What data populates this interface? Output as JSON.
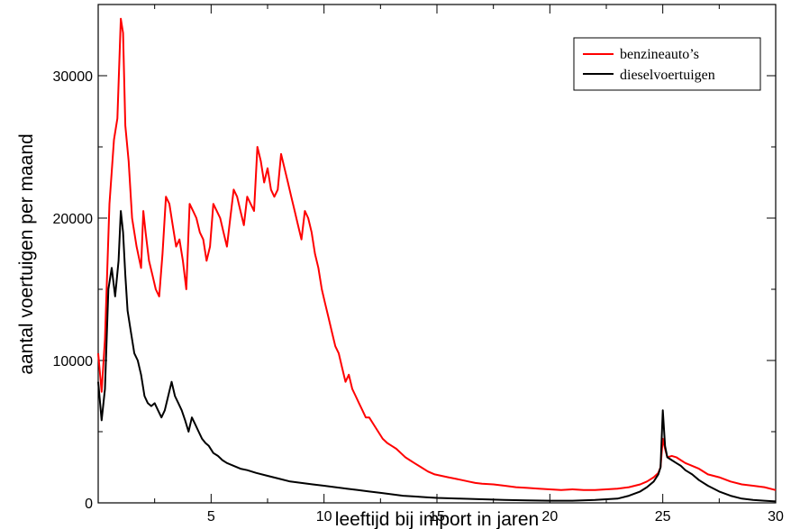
{
  "chart_data": {
    "type": "line",
    "xlabel": "leeftijd bij import in jaren",
    "ylabel": "aantal voertuigen per maand",
    "xlim": [
      0,
      30
    ],
    "ylim": [
      0,
      35000
    ],
    "xticks": [
      5,
      10,
      15,
      20,
      25,
      30
    ],
    "yticks": [
      0,
      10000,
      20000,
      30000
    ],
    "grid": false,
    "legend_position": "top-right",
    "series": [
      {
        "name": "benzineauto’s",
        "color": "#ff0000",
        "x": [
          0.0,
          0.15,
          0.3,
          0.5,
          0.7,
          0.85,
          1.0,
          1.1,
          1.2,
          1.35,
          1.5,
          1.7,
          1.9,
          2.0,
          2.1,
          2.25,
          2.4,
          2.55,
          2.7,
          2.85,
          3.0,
          3.15,
          3.3,
          3.45,
          3.6,
          3.75,
          3.9,
          4.05,
          4.2,
          4.35,
          4.5,
          4.65,
          4.8,
          4.95,
          5.1,
          5.25,
          5.4,
          5.55,
          5.7,
          5.85,
          6.0,
          6.15,
          6.3,
          6.45,
          6.6,
          6.75,
          6.9,
          7.05,
          7.2,
          7.35,
          7.5,
          7.65,
          7.8,
          7.95,
          8.1,
          8.25,
          8.4,
          8.55,
          8.7,
          8.85,
          9.0,
          9.15,
          9.3,
          9.45,
          9.6,
          9.75,
          9.9,
          10.05,
          10.2,
          10.35,
          10.5,
          10.65,
          10.8,
          10.95,
          11.1,
          11.25,
          11.4,
          11.55,
          11.7,
          11.85,
          12.0,
          12.2,
          12.4,
          12.6,
          12.8,
          13.0,
          13.2,
          13.4,
          13.6,
          13.8,
          14.0,
          14.3,
          14.6,
          14.9,
          15.2,
          15.5,
          15.8,
          16.1,
          16.4,
          16.7,
          17.0,
          17.5,
          18.0,
          18.5,
          19.0,
          19.5,
          20.0,
          20.5,
          21.0,
          21.5,
          22.0,
          22.5,
          23.0,
          23.5,
          24.0,
          24.3,
          24.6,
          24.8,
          24.9,
          25.0,
          25.1,
          25.2,
          25.4,
          25.6,
          25.8,
          26.0,
          26.3,
          26.6,
          27.0,
          27.5,
          28.0,
          28.5,
          29.0,
          29.5,
          30.0
        ],
        "values": [
          10500,
          7800,
          11500,
          21000,
          25500,
          27000,
          34000,
          33000,
          26500,
          24000,
          20000,
          18000,
          16500,
          20500,
          19000,
          17000,
          16000,
          15000,
          14500,
          17500,
          21500,
          21000,
          19500,
          18000,
          18500,
          17000,
          15000,
          21000,
          20500,
          20000,
          19000,
          18500,
          17000,
          18000,
          21000,
          20500,
          20000,
          19000,
          18000,
          20000,
          22000,
          21500,
          20500,
          19500,
          21500,
          21000,
          20500,
          25000,
          24000,
          22500,
          23500,
          22000,
          21500,
          22000,
          24500,
          23500,
          22500,
          21500,
          20500,
          19500,
          18500,
          20500,
          20000,
          19000,
          17500,
          16500,
          15000,
          14000,
          13000,
          12000,
          11000,
          10500,
          9500,
          8500,
          9000,
          8000,
          7500,
          7000,
          6500,
          6000,
          6000,
          5500,
          5000,
          4500,
          4200,
          4000,
          3800,
          3500,
          3200,
          3000,
          2800,
          2500,
          2200,
          2000,
          1900,
          1800,
          1700,
          1600,
          1500,
          1400,
          1350,
          1300,
          1200,
          1100,
          1050,
          1000,
          950,
          900,
          950,
          900,
          900,
          950,
          1000,
          1100,
          1300,
          1500,
          1800,
          2100,
          2500,
          4500,
          3800,
          3200,
          3300,
          3200,
          3000,
          2800,
          2600,
          2400,
          2000,
          1800,
          1500,
          1300,
          1200,
          1100,
          900
        ]
      },
      {
        "name": "dieselvoertuigen",
        "color": "#000000",
        "x": [
          0.0,
          0.15,
          0.3,
          0.45,
          0.6,
          0.75,
          0.9,
          1.0,
          1.1,
          1.2,
          1.3,
          1.45,
          1.6,
          1.75,
          1.9,
          2.05,
          2.2,
          2.35,
          2.5,
          2.65,
          2.8,
          2.95,
          3.1,
          3.25,
          3.4,
          3.55,
          3.7,
          3.85,
          4.0,
          4.15,
          4.3,
          4.45,
          4.6,
          4.75,
          4.9,
          5.1,
          5.3,
          5.5,
          5.7,
          6.0,
          6.3,
          6.6,
          7.0,
          7.5,
          8.0,
          8.5,
          9.0,
          9.5,
          10.0,
          10.5,
          11.0,
          11.5,
          12.0,
          12.5,
          13.0,
          13.5,
          14.0,
          14.5,
          15.0,
          16.0,
          17.0,
          18.0,
          19.0,
          20.0,
          21.0,
          22.0,
          23.0,
          23.5,
          24.0,
          24.3,
          24.6,
          24.8,
          24.9,
          25.0,
          25.1,
          25.2,
          25.4,
          25.6,
          25.8,
          26.0,
          26.3,
          26.6,
          27.0,
          27.5,
          28.0,
          28.5,
          29.0,
          29.5,
          30.0
        ],
        "values": [
          8500,
          5800,
          8000,
          15000,
          16500,
          14500,
          17000,
          20500,
          19000,
          16000,
          13500,
          12000,
          10500,
          10000,
          9000,
          7500,
          7000,
          6800,
          7000,
          6500,
          6000,
          6500,
          7500,
          8500,
          7500,
          7000,
          6500,
          5800,
          5000,
          6000,
          5500,
          5000,
          4500,
          4200,
          4000,
          3500,
          3300,
          3000,
          2800,
          2600,
          2400,
          2300,
          2100,
          1900,
          1700,
          1500,
          1400,
          1300,
          1200,
          1100,
          1000,
          900,
          800,
          700,
          600,
          500,
          450,
          400,
          350,
          300,
          250,
          200,
          180,
          150,
          150,
          200,
          300,
          500,
          800,
          1100,
          1500,
          2000,
          2500,
          6500,
          4000,
          3200,
          3000,
          2800,
          2600,
          2300,
          2000,
          1600,
          1200,
          800,
          500,
          300,
          200,
          150,
          100
        ]
      }
    ]
  }
}
